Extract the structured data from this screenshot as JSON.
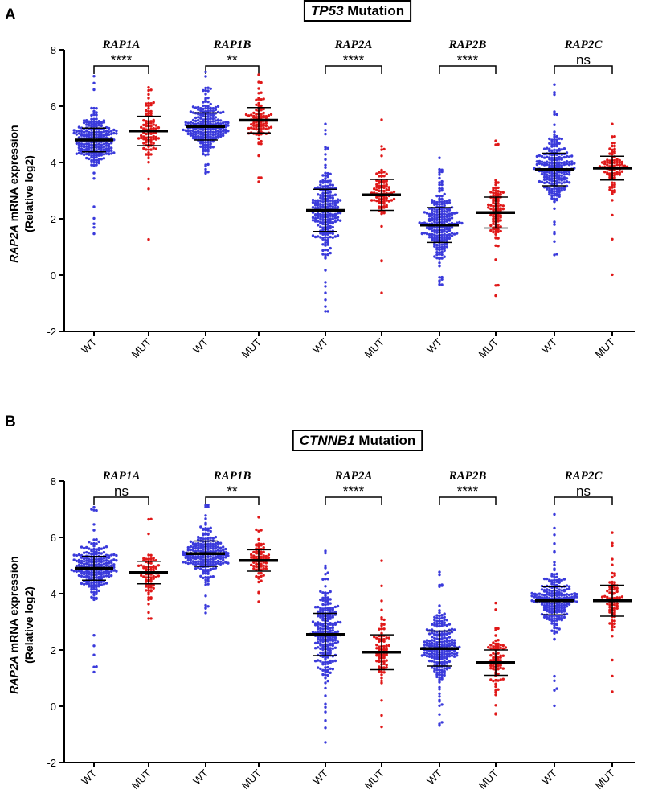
{
  "chart_data": [
    {
      "type": "scatter",
      "subtype": "dot-plot-with-mean-and-sd",
      "panel": "A",
      "title_gene": "TP53",
      "title_suffix": " Mutation",
      "ylabel_gene": "RAP2A",
      "ylabel_rest": " mRNA expression",
      "ylabel_line2": "(Relative log2)",
      "ylim": [
        -2,
        8
      ],
      "yticks": [
        -2,
        0,
        2,
        4,
        6,
        8
      ],
      "categories": [
        "WT",
        "MUT",
        "WT",
        "MUT",
        "WT",
        "MUT",
        "WT",
        "MUT",
        "WT",
        "MUT"
      ],
      "colors": {
        "WT": "#3a3adb",
        "MUT": "#e01818"
      },
      "groups": [
        {
          "gene": "RAP1A",
          "significance": "****",
          "wt": {
            "n": 230,
            "mean": 4.8,
            "sd": 0.42,
            "min": 1.45,
            "max": 7.05
          },
          "mut": {
            "n": 95,
            "mean": 5.12,
            "sd": 0.52,
            "min": 1.25,
            "max": 6.65
          }
        },
        {
          "gene": "RAP1B",
          "significance": "**",
          "wt": {
            "n": 230,
            "mean": 5.28,
            "sd": 0.48,
            "min": 3.6,
            "max": 7.2
          },
          "mut": {
            "n": 95,
            "mean": 5.5,
            "sd": 0.45,
            "min": 3.3,
            "max": 7.1
          }
        },
        {
          "gene": "RAP2A",
          "significance": "****",
          "wt": {
            "n": 230,
            "mean": 2.3,
            "sd": 0.75,
            "min": -1.3,
            "max": 5.35
          },
          "mut": {
            "n": 95,
            "mean": 2.85,
            "sd": 0.55,
            "min": -0.65,
            "max": 5.5
          }
        },
        {
          "gene": "RAP2B",
          "significance": "****",
          "wt": {
            "n": 230,
            "mean": 1.78,
            "sd": 0.62,
            "min": -0.35,
            "max": 4.15
          },
          "mut": {
            "n": 95,
            "mean": 2.22,
            "sd": 0.55,
            "min": -0.75,
            "max": 4.75
          }
        },
        {
          "gene": "RAP2C",
          "significance": "ns",
          "wt": {
            "n": 230,
            "mean": 3.75,
            "sd": 0.58,
            "min": 0.7,
            "max": 6.75
          },
          "mut": {
            "n": 95,
            "mean": 3.8,
            "sd": 0.42,
            "min": 0.0,
            "max": 5.35
          }
        }
      ]
    },
    {
      "type": "scatter",
      "subtype": "dot-plot-with-mean-and-sd",
      "panel": "B",
      "title_gene": "CTNNB1",
      "title_suffix": " Mutation",
      "ylabel_gene": "RAP2A",
      "ylabel_rest": " mRNA expression",
      "ylabel_line2": "(Relative log2)",
      "ylim": [
        -2,
        8
      ],
      "yticks": [
        -2,
        0,
        2,
        4,
        6,
        8
      ],
      "categories": [
        "WT",
        "MUT",
        "WT",
        "MUT",
        "WT",
        "MUT",
        "WT",
        "MUT",
        "WT",
        "MUT"
      ],
      "colors": {
        "WT": "#3a3adb",
        "MUT": "#e01818"
      },
      "groups": [
        {
          "gene": "RAP1A",
          "significance": "ns",
          "wt": {
            "n": 230,
            "mean": 4.9,
            "sd": 0.42,
            "min": 1.2,
            "max": 7.05
          },
          "mut": {
            "n": 80,
            "mean": 4.75,
            "sd": 0.4,
            "min": 3.1,
            "max": 6.65
          }
        },
        {
          "gene": "RAP1B",
          "significance": "**",
          "wt": {
            "n": 230,
            "mean": 5.42,
            "sd": 0.45,
            "min": 3.3,
            "max": 7.15
          },
          "mut": {
            "n": 80,
            "mean": 5.18,
            "sd": 0.38,
            "min": 3.7,
            "max": 6.7
          }
        },
        {
          "gene": "RAP2A",
          "significance": "****",
          "wt": {
            "n": 230,
            "mean": 2.55,
            "sd": 0.75,
            "min": -1.3,
            "max": 5.5
          },
          "mut": {
            "n": 80,
            "mean": 1.92,
            "sd": 0.62,
            "min": -0.75,
            "max": 5.15
          }
        },
        {
          "gene": "RAP2B",
          "significance": "****",
          "wt": {
            "n": 230,
            "mean": 2.05,
            "sd": 0.62,
            "min": -0.7,
            "max": 4.75
          },
          "mut": {
            "n": 80,
            "mean": 1.55,
            "sd": 0.45,
            "min": -0.3,
            "max": 3.65
          }
        },
        {
          "gene": "RAP2C",
          "significance": "ns",
          "wt": {
            "n": 230,
            "mean": 3.75,
            "sd": 0.5,
            "min": 0.0,
            "max": 6.8
          },
          "mut": {
            "n": 80,
            "mean": 3.75,
            "sd": 0.55,
            "min": 0.5,
            "max": 6.15
          }
        }
      ]
    }
  ]
}
